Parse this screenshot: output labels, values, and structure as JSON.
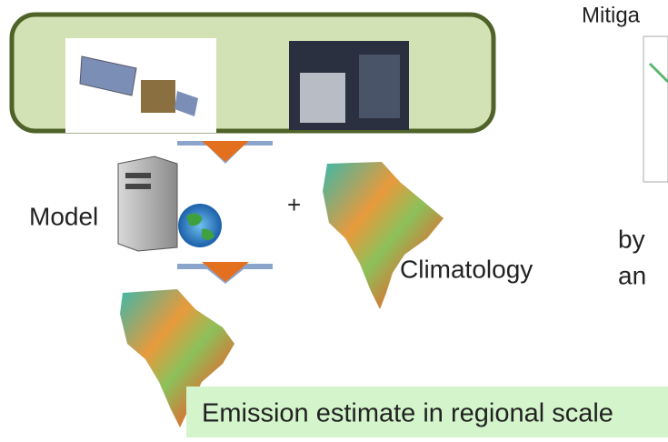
{
  "labels": {
    "top_right": "Mitiga",
    "model": "Model",
    "plus": "+",
    "climatology": "Climatology",
    "right_1": "by",
    "right_2": "an",
    "caption": "Emission estimate in regional scale"
  }
}
